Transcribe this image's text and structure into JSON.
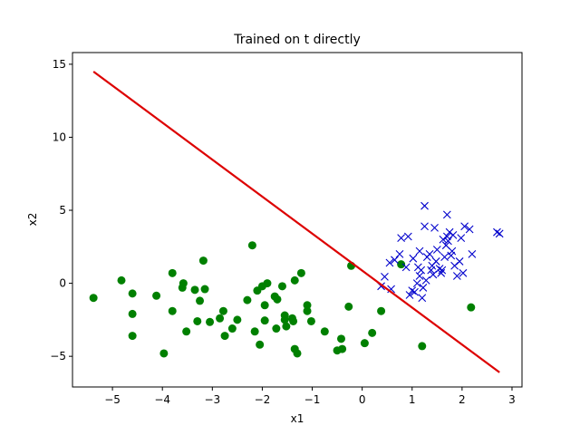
{
  "chart_data": {
    "type": "scatter",
    "title": "Trained on t directly",
    "xlabel": "x1",
    "ylabel": "x2",
    "xlim": [
      -5.8,
      3.2
    ],
    "ylim": [
      -7.1,
      15.8
    ],
    "xticks": [
      -5,
      -4,
      -3,
      -2,
      -1,
      0,
      1,
      2,
      3
    ],
    "yticks": [
      -5,
      0,
      5,
      10,
      15
    ],
    "grid": false,
    "series": [
      {
        "marker": "circle",
        "color": "#008000",
        "points": [
          [
            -5.38,
            -1.0
          ],
          [
            -4.82,
            0.2
          ],
          [
            -4.6,
            -0.7
          ],
          [
            -4.6,
            -2.1
          ],
          [
            -4.6,
            -3.6
          ],
          [
            -4.12,
            -0.85
          ],
          [
            -3.97,
            -4.8
          ],
          [
            -3.8,
            0.7
          ],
          [
            -3.8,
            -1.9
          ],
          [
            -3.6,
            -0.3
          ],
          [
            -3.58,
            0.0
          ],
          [
            -3.52,
            -3.3
          ],
          [
            -3.35,
            -0.45
          ],
          [
            -3.3,
            -2.6
          ],
          [
            -3.25,
            -1.2
          ],
          [
            -3.18,
            1.55
          ],
          [
            -3.15,
            -0.4
          ],
          [
            -3.05,
            -2.65
          ],
          [
            -2.85,
            -2.4
          ],
          [
            -2.78,
            -1.9
          ],
          [
            -2.75,
            -3.6
          ],
          [
            -2.6,
            -3.1
          ],
          [
            -2.5,
            -2.5
          ],
          [
            -2.3,
            -1.15
          ],
          [
            -2.2,
            2.6
          ],
          [
            -2.15,
            -3.3
          ],
          [
            -2.1,
            -0.5
          ],
          [
            -2.05,
            -4.2
          ],
          [
            -2.0,
            -0.2
          ],
          [
            -1.95,
            -1.5
          ],
          [
            -1.95,
            -2.55
          ],
          [
            -1.9,
            0.0
          ],
          [
            -1.75,
            -0.9
          ],
          [
            -1.72,
            -3.1
          ],
          [
            -1.7,
            -1.1
          ],
          [
            -1.6,
            -0.2
          ],
          [
            -1.55,
            -2.2
          ],
          [
            -1.55,
            -2.5
          ],
          [
            -1.52,
            -2.95
          ],
          [
            -1.4,
            -2.4
          ],
          [
            -1.38,
            -2.6
          ],
          [
            -1.35,
            0.2
          ],
          [
            -1.35,
            -4.5
          ],
          [
            -1.3,
            -4.8
          ],
          [
            -1.22,
            0.7
          ],
          [
            -1.1,
            -1.5
          ],
          [
            -1.1,
            -1.9
          ],
          [
            -1.02,
            -2.6
          ],
          [
            -0.75,
            -3.3
          ],
          [
            -0.5,
            -4.6
          ],
          [
            -0.42,
            -3.8
          ],
          [
            -0.4,
            -4.5
          ],
          [
            -0.27,
            -1.6
          ],
          [
            -0.22,
            1.2
          ],
          [
            0.05,
            -4.1
          ],
          [
            0.2,
            -3.4
          ],
          [
            0.38,
            -1.9
          ],
          [
            0.78,
            1.3
          ],
          [
            1.2,
            -4.3
          ],
          [
            2.18,
            -1.65
          ]
        ]
      },
      {
        "marker": "x",
        "color": "#0000cc",
        "points": [
          [
            0.38,
            -0.2
          ],
          [
            0.45,
            0.45
          ],
          [
            0.55,
            1.4
          ],
          [
            0.58,
            -0.4
          ],
          [
            0.65,
            1.6
          ],
          [
            0.75,
            2.0
          ],
          [
            0.78,
            3.1
          ],
          [
            0.88,
            1.1
          ],
          [
            0.92,
            3.2
          ],
          [
            0.95,
            -0.8
          ],
          [
            1.0,
            -0.5
          ],
          [
            1.02,
            1.7
          ],
          [
            1.05,
            -0.6
          ],
          [
            1.1,
            0.0
          ],
          [
            1.12,
            1.1
          ],
          [
            1.15,
            0.5
          ],
          [
            1.15,
            2.2
          ],
          [
            1.18,
            0.9
          ],
          [
            1.2,
            -1.0
          ],
          [
            1.22,
            -0.3
          ],
          [
            1.25,
            3.9
          ],
          [
            1.25,
            5.3
          ],
          [
            1.28,
            0.2
          ],
          [
            1.3,
            1.8
          ],
          [
            1.35,
            2.0
          ],
          [
            1.38,
            0.9
          ],
          [
            1.4,
            1.2
          ],
          [
            1.42,
            0.6
          ],
          [
            1.45,
            3.8
          ],
          [
            1.48,
            1.5
          ],
          [
            1.5,
            2.3
          ],
          [
            1.55,
            1.0
          ],
          [
            1.58,
            0.7
          ],
          [
            1.6,
            0.9
          ],
          [
            1.62,
            3.0
          ],
          [
            1.65,
            1.8
          ],
          [
            1.68,
            2.6
          ],
          [
            1.7,
            3.2
          ],
          [
            1.7,
            4.7
          ],
          [
            1.72,
            2.9
          ],
          [
            1.75,
            3.5
          ],
          [
            1.78,
            1.9
          ],
          [
            1.8,
            2.2
          ],
          [
            1.82,
            3.3
          ],
          [
            1.85,
            1.2
          ],
          [
            1.9,
            0.5
          ],
          [
            1.95,
            1.5
          ],
          [
            1.98,
            3.1
          ],
          [
            2.02,
            0.7
          ],
          [
            2.05,
            3.9
          ],
          [
            2.15,
            3.7
          ],
          [
            2.2,
            2.0
          ],
          [
            2.7,
            3.5
          ],
          [
            2.75,
            3.4
          ]
        ]
      }
    ],
    "lines": [
      {
        "color": "#dd0000",
        "points": [
          [
            -5.38,
            14.5
          ],
          [
            2.75,
            -6.1
          ]
        ]
      }
    ]
  }
}
